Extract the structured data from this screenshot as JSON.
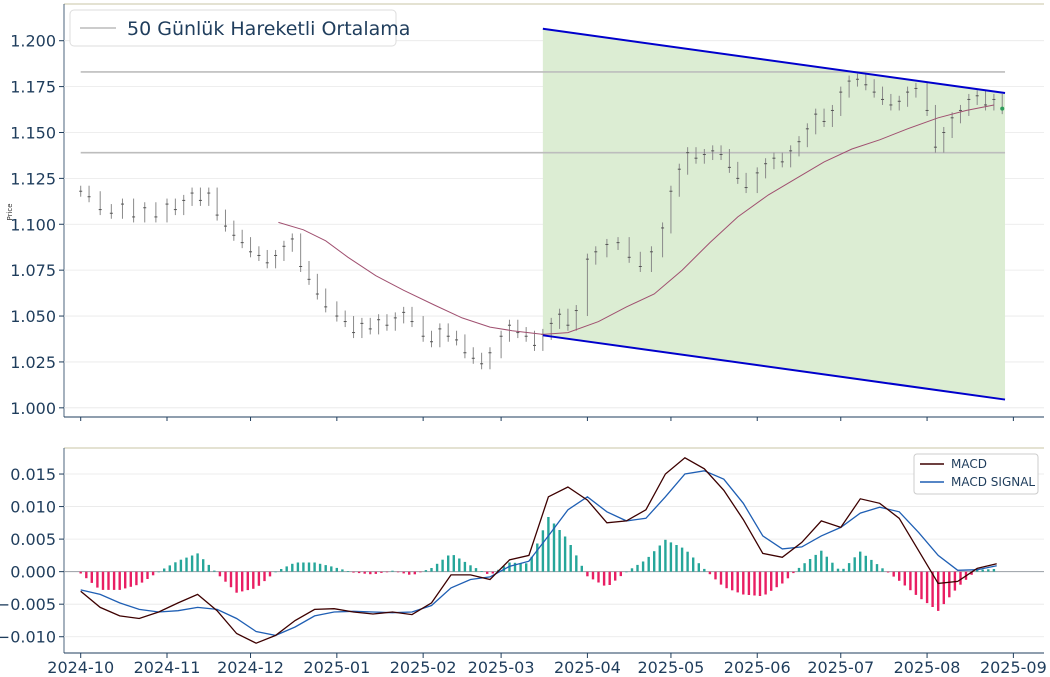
{
  "chart_data": [
    {
      "type": "candlestick",
      "ylabel": "Price",
      "ylim": [
        0.995,
        1.22
      ],
      "yticks": [
        "1.000",
        "1.025",
        "1.050",
        "1.075",
        "1.100",
        "1.125",
        "1.150",
        "1.175",
        "1.200"
      ],
      "ytick_values": [
        1.0,
        1.025,
        1.05,
        1.075,
        1.1,
        1.125,
        1.15,
        1.175,
        1.2
      ],
      "legend": {
        "label": "50 Günlük Hareketli Ortalama",
        "position": "top-left"
      },
      "horizontal_levels": [
        1.183,
        1.139
      ],
      "channel": {
        "fill_color": "#dcedd3",
        "line_color": "#0000cc",
        "upper": [
          [
            "2025-03-16",
            1.2065
          ],
          [
            "2025-08-29",
            1.1715
          ]
        ],
        "lower": [
          [
            "2025-03-16",
            1.0395
          ],
          [
            "2025-08-29",
            1.0045
          ]
        ]
      },
      "price_closes": [
        [
          "2024-10-01",
          1.118
        ],
        [
          "2024-10-04",
          1.115
        ],
        [
          "2024-10-08",
          1.108
        ],
        [
          "2024-10-12",
          1.106
        ],
        [
          "2024-10-16",
          1.111
        ],
        [
          "2024-10-20",
          1.104
        ],
        [
          "2024-10-24",
          1.109
        ],
        [
          "2024-10-28",
          1.104
        ],
        [
          "2024-11-01",
          1.111
        ],
        [
          "2024-11-04",
          1.108
        ],
        [
          "2024-11-07",
          1.113
        ],
        [
          "2024-11-10",
          1.117
        ],
        [
          "2024-11-13",
          1.113
        ],
        [
          "2024-11-16",
          1.117
        ],
        [
          "2024-11-19",
          1.105
        ],
        [
          "2024-11-22",
          1.099
        ],
        [
          "2024-11-25",
          1.094
        ],
        [
          "2024-11-28",
          1.09
        ],
        [
          "2024-12-01",
          1.085
        ],
        [
          "2024-12-04",
          1.083
        ],
        [
          "2024-12-07",
          1.079
        ],
        [
          "2024-12-10",
          1.083
        ],
        [
          "2024-12-13",
          1.088
        ],
        [
          "2024-12-16",
          1.092
        ],
        [
          "2024-12-19",
          1.077
        ],
        [
          "2024-12-22",
          1.07
        ],
        [
          "2024-12-25",
          1.062
        ],
        [
          "2024-12-28",
          1.055
        ],
        [
          "2025-01-01",
          1.05
        ],
        [
          "2025-01-04",
          1.047
        ],
        [
          "2025-01-07",
          1.041
        ],
        [
          "2025-01-10",
          1.046
        ],
        [
          "2025-01-13",
          1.043
        ],
        [
          "2025-01-16",
          1.048
        ],
        [
          "2025-01-19",
          1.045
        ],
        [
          "2025-01-22",
          1.049
        ],
        [
          "2025-01-25",
          1.052
        ],
        [
          "2025-01-28",
          1.047
        ],
        [
          "2025-02-01",
          1.039
        ],
        [
          "2025-02-04",
          1.036
        ],
        [
          "2025-02-07",
          1.043
        ],
        [
          "2025-02-10",
          1.039
        ],
        [
          "2025-02-13",
          1.037
        ],
        [
          "2025-02-16",
          1.03
        ],
        [
          "2025-02-19",
          1.027
        ],
        [
          "2025-02-22",
          1.024
        ],
        [
          "2025-02-25",
          1.03
        ],
        [
          "2025-03-01",
          1.039
        ],
        [
          "2025-03-04",
          1.045
        ],
        [
          "2025-03-07",
          1.041
        ],
        [
          "2025-03-10",
          1.039
        ],
        [
          "2025-03-13",
          1.034
        ],
        [
          "2025-03-16",
          1.04
        ],
        [
          "2025-03-19",
          1.046
        ],
        [
          "2025-03-22",
          1.051
        ],
        [
          "2025-03-25",
          1.045
        ],
        [
          "2025-03-28",
          1.053
        ],
        [
          "2025-04-01",
          1.081
        ],
        [
          "2025-04-04",
          1.085
        ],
        [
          "2025-04-08",
          1.089
        ],
        [
          "2025-04-12",
          1.09
        ],
        [
          "2025-04-16",
          1.082
        ],
        [
          "2025-04-20",
          1.077
        ],
        [
          "2025-04-24",
          1.085
        ],
        [
          "2025-04-28",
          1.098
        ],
        [
          "2025-05-01",
          1.118
        ],
        [
          "2025-05-04",
          1.13
        ],
        [
          "2025-05-07",
          1.139
        ],
        [
          "2025-05-10",
          1.136
        ],
        [
          "2025-05-13",
          1.138
        ],
        [
          "2025-05-16",
          1.14
        ],
        [
          "2025-05-19",
          1.138
        ],
        [
          "2025-05-22",
          1.131
        ],
        [
          "2025-05-25",
          1.125
        ],
        [
          "2025-05-28",
          1.12
        ],
        [
          "2025-06-01",
          1.128
        ],
        [
          "2025-06-04",
          1.133
        ],
        [
          "2025-06-07",
          1.136
        ],
        [
          "2025-06-10",
          1.134
        ],
        [
          "2025-06-13",
          1.14
        ],
        [
          "2025-06-16",
          1.145
        ],
        [
          "2025-06-19",
          1.152
        ],
        [
          "2025-06-22",
          1.16
        ],
        [
          "2025-06-25",
          1.156
        ],
        [
          "2025-06-28",
          1.162
        ],
        [
          "2025-07-01",
          1.172
        ],
        [
          "2025-07-04",
          1.178
        ],
        [
          "2025-07-07",
          1.179
        ],
        [
          "2025-07-10",
          1.176
        ],
        [
          "2025-07-13",
          1.172
        ],
        [
          "2025-07-16",
          1.168
        ],
        [
          "2025-07-19",
          1.165
        ],
        [
          "2025-07-22",
          1.167
        ],
        [
          "2025-07-25",
          1.172
        ],
        [
          "2025-07-28",
          1.174
        ],
        [
          "2025-08-01",
          1.162
        ],
        [
          "2025-08-04",
          1.142
        ],
        [
          "2025-08-07",
          1.15
        ],
        [
          "2025-08-10",
          1.158
        ],
        [
          "2025-08-13",
          1.162
        ],
        [
          "2025-08-16",
          1.168
        ],
        [
          "2025-08-19",
          1.17
        ],
        [
          "2025-08-22",
          1.165
        ],
        [
          "2025-08-25",
          1.168
        ],
        [
          "2025-08-28",
          1.163
        ]
      ],
      "moving_average": [
        [
          "2024-12-11",
          1.101
        ],
        [
          "2024-12-20",
          1.097
        ],
        [
          "2024-12-28",
          1.091
        ],
        [
          "2025-01-05",
          1.082
        ],
        [
          "2025-01-15",
          1.072
        ],
        [
          "2025-01-25",
          1.064
        ],
        [
          "2025-02-05",
          1.056
        ],
        [
          "2025-02-15",
          1.049
        ],
        [
          "2025-02-25",
          1.044
        ],
        [
          "2025-03-05",
          1.042
        ],
        [
          "2025-03-16",
          1.04
        ],
        [
          "2025-03-25",
          1.041
        ],
        [
          "2025-04-05",
          1.047
        ],
        [
          "2025-04-15",
          1.055
        ],
        [
          "2025-04-25",
          1.062
        ],
        [
          "2025-05-05",
          1.075
        ],
        [
          "2025-05-15",
          1.09
        ],
        [
          "2025-05-25",
          1.104
        ],
        [
          "2025-06-05",
          1.116
        ],
        [
          "2025-06-15",
          1.125
        ],
        [
          "2025-06-25",
          1.134
        ],
        [
          "2025-07-05",
          1.141
        ],
        [
          "2025-07-15",
          1.146
        ],
        [
          "2025-07-25",
          1.152
        ],
        [
          "2025-08-05",
          1.158
        ],
        [
          "2025-08-15",
          1.162
        ],
        [
          "2025-08-25",
          1.165
        ]
      ]
    },
    {
      "type": "line",
      "ylim": [
        -0.0125,
        0.019
      ],
      "yticks": [
        "−0.010",
        "−0.005",
        "0.000",
        "0.005",
        "0.010",
        "0.015"
      ],
      "ytick_values": [
        -0.01,
        -0.005,
        0.0,
        0.005,
        0.01,
        0.015
      ],
      "xticks": [
        "2024-10",
        "2024-11",
        "2024-12",
        "2025-01",
        "2025-02",
        "2025-03",
        "2025-04",
        "2025-05",
        "2025-06",
        "2025-07",
        "2025-08",
        "2025-09"
      ],
      "legend": {
        "position": "top-right"
      },
      "series": [
        {
          "name": "MACD",
          "color": "#3d0000",
          "values": [
            [
              "2024-10-01",
              -0.003
            ],
            [
              "2024-10-08",
              -0.0055
            ],
            [
              "2024-10-15",
              -0.0068
            ],
            [
              "2024-10-22",
              -0.0072
            ],
            [
              "2024-10-29",
              -0.0062
            ],
            [
              "2024-11-05",
              -0.0048
            ],
            [
              "2024-11-12",
              -0.0035
            ],
            [
              "2024-11-19",
              -0.006
            ],
            [
              "2024-11-26",
              -0.0095
            ],
            [
              "2024-12-03",
              -0.011
            ],
            [
              "2024-12-10",
              -0.0098
            ],
            [
              "2024-12-17",
              -0.0075
            ],
            [
              "2024-12-24",
              -0.0058
            ],
            [
              "2024-12-31",
              -0.0057
            ],
            [
              "2025-01-07",
              -0.0062
            ],
            [
              "2025-01-14",
              -0.0065
            ],
            [
              "2025-01-21",
              -0.0062
            ],
            [
              "2025-01-28",
              -0.0066
            ],
            [
              "2025-02-04",
              -0.0048
            ],
            [
              "2025-02-11",
              -0.0005
            ],
            [
              "2025-02-18",
              -0.0005
            ],
            [
              "2025-02-25",
              -0.0012
            ],
            [
              "2025-03-04",
              0.0018
            ],
            [
              "2025-03-11",
              0.0025
            ],
            [
              "2025-03-18",
              0.0115
            ],
            [
              "2025-03-25",
              0.013
            ],
            [
              "2025-04-01",
              0.011
            ],
            [
              "2025-04-08",
              0.0075
            ],
            [
              "2025-04-15",
              0.0078
            ],
            [
              "2025-04-22",
              0.0095
            ],
            [
              "2025-04-29",
              0.015
            ],
            [
              "2025-05-06",
              0.0175
            ],
            [
              "2025-05-13",
              0.0158
            ],
            [
              "2025-05-20",
              0.0125
            ],
            [
              "2025-05-27",
              0.008
            ],
            [
              "2025-06-03",
              0.0028
            ],
            [
              "2025-06-10",
              0.0022
            ],
            [
              "2025-06-17",
              0.0045
            ],
            [
              "2025-06-24",
              0.0078
            ],
            [
              "2025-07-01",
              0.0068
            ],
            [
              "2025-07-08",
              0.0112
            ],
            [
              "2025-07-15",
              0.0105
            ],
            [
              "2025-07-22",
              0.0082
            ],
            [
              "2025-07-29",
              0.0032
            ],
            [
              "2025-08-05",
              -0.0018
            ],
            [
              "2025-08-12",
              -0.0015
            ],
            [
              "2025-08-19",
              0.0005
            ],
            [
              "2025-08-26",
              0.0012
            ]
          ]
        },
        {
          "name": "MACD SIGNAL",
          "color": "#1f5fb4",
          "values": [
            [
              "2024-10-01",
              -0.0028
            ],
            [
              "2024-10-08",
              -0.0035
            ],
            [
              "2024-10-15",
              -0.0048
            ],
            [
              "2024-10-22",
              -0.0058
            ],
            [
              "2024-10-29",
              -0.0062
            ],
            [
              "2024-11-05",
              -0.006
            ],
            [
              "2024-11-12",
              -0.0055
            ],
            [
              "2024-11-19",
              -0.0058
            ],
            [
              "2024-11-26",
              -0.0072
            ],
            [
              "2024-12-03",
              -0.0092
            ],
            [
              "2024-12-10",
              -0.0098
            ],
            [
              "2024-12-17",
              -0.0085
            ],
            [
              "2024-12-24",
              -0.0068
            ],
            [
              "2024-12-31",
              -0.0062
            ],
            [
              "2025-01-07",
              -0.0061
            ],
            [
              "2025-01-14",
              -0.0062
            ],
            [
              "2025-01-21",
              -0.0063
            ],
            [
              "2025-01-28",
              -0.0062
            ],
            [
              "2025-02-04",
              -0.0052
            ],
            [
              "2025-02-11",
              -0.0025
            ],
            [
              "2025-02-18",
              -0.0012
            ],
            [
              "2025-02-25",
              -0.0008
            ],
            [
              "2025-03-04",
              0.0008
            ],
            [
              "2025-03-11",
              0.0016
            ],
            [
              "2025-03-18",
              0.0055
            ],
            [
              "2025-03-25",
              0.0095
            ],
            [
              "2025-04-01",
              0.0115
            ],
            [
              "2025-04-08",
              0.0092
            ],
            [
              "2025-04-15",
              0.0078
            ],
            [
              "2025-04-22",
              0.0082
            ],
            [
              "2025-04-29",
              0.0115
            ],
            [
              "2025-05-06",
              0.015
            ],
            [
              "2025-05-13",
              0.0155
            ],
            [
              "2025-05-20",
              0.0142
            ],
            [
              "2025-05-27",
              0.0105
            ],
            [
              "2025-06-03",
              0.0055
            ],
            [
              "2025-06-10",
              0.0035
            ],
            [
              "2025-06-17",
              0.0038
            ],
            [
              "2025-06-24",
              0.0055
            ],
            [
              "2025-07-01",
              0.0068
            ],
            [
              "2025-07-08",
              0.009
            ],
            [
              "2025-07-15",
              0.0099
            ],
            [
              "2025-07-22",
              0.0092
            ],
            [
              "2025-07-29",
              0.006
            ],
            [
              "2025-08-05",
              0.0025
            ],
            [
              "2025-08-12",
              0.0002
            ],
            [
              "2025-08-19",
              0.0003
            ],
            [
              "2025-08-26",
              0.0009
            ]
          ]
        }
      ],
      "histogram_colors": {
        "positive": "#26a69a",
        "negative": "#e91e63"
      }
    }
  ]
}
